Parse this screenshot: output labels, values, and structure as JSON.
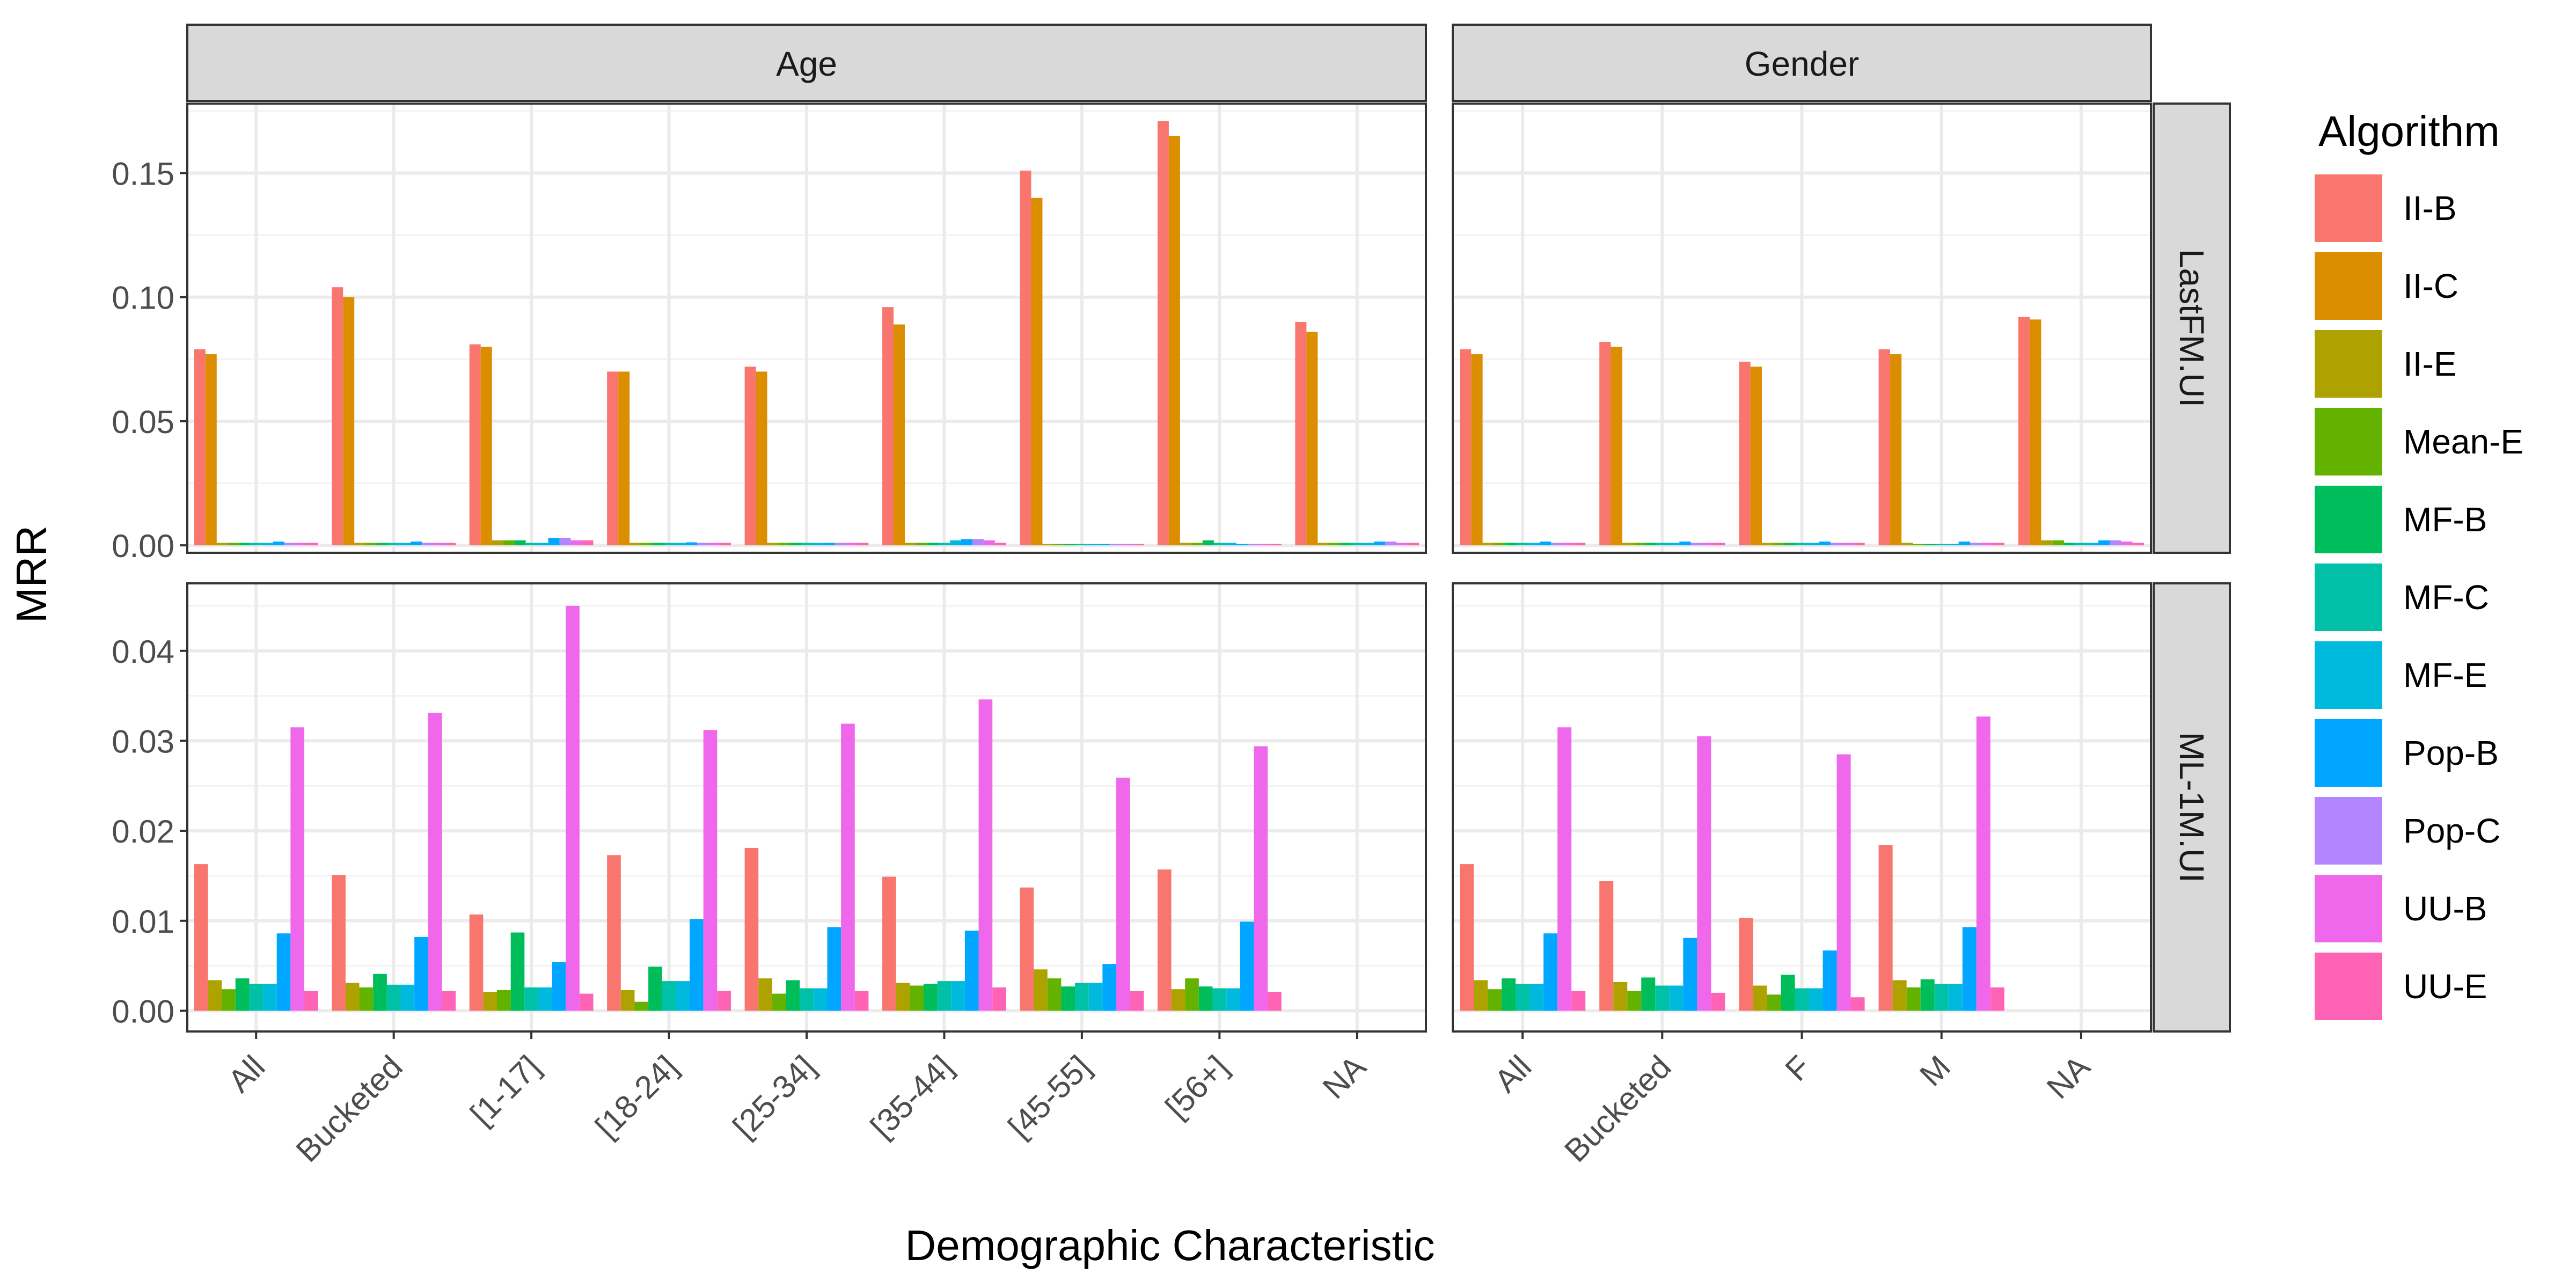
{
  "chart_data": {
    "type": "bar",
    "xlabel": "Demographic Characteristic",
    "ylabel": "MRR",
    "legend": {
      "title": "Algorithm",
      "position": "right",
      "algorithms": [
        "II-B",
        "II-C",
        "II-E",
        "Mean-E",
        "MF-B",
        "MF-C",
        "MF-E",
        "Pop-B",
        "Pop-C",
        "UU-B",
        "UU-E"
      ],
      "colors": [
        "#F8766D",
        "#DB8E00",
        "#AEA200",
        "#64B200",
        "#00BD5C",
        "#00C1A7",
        "#00BADE",
        "#00A6FF",
        "#B385FF",
        "#EF67EB",
        "#FF63B6"
      ]
    },
    "grid": true,
    "columns": [
      {
        "label": "Age",
        "categories": [
          "All",
          "Bucketed",
          "[1-17]",
          "[18-24]",
          "[25-34]",
          "[35-44]",
          "[45-55]",
          "[56+]",
          "NA"
        ]
      },
      {
        "label": "Gender",
        "categories": [
          "All",
          "Bucketed",
          "F",
          "M",
          "NA"
        ]
      }
    ],
    "rows": [
      {
        "label": "LastFM.UI",
        "ylim": [
          -0.003,
          0.178
        ],
        "ticks": [
          0,
          0.05,
          0.1,
          0.15
        ],
        "tick_labels": [
          "0.00",
          "0.05",
          "0.10",
          "0.15"
        ]
      },
      {
        "label": "ML-1M.UI",
        "ylim": [
          -0.0023,
          0.0475
        ],
        "ticks": [
          0,
          0.01,
          0.02,
          0.03,
          0.04
        ],
        "tick_labels": [
          "0.00",
          "0.01",
          "0.02",
          "0.03",
          "0.04"
        ]
      }
    ],
    "panels": [
      {
        "row": 0,
        "col": 0,
        "values": [
          [
            0.079,
            0.077,
            0.001,
            0.001,
            0.001,
            0.001,
            0.001,
            0.0015,
            0.001,
            0.001,
            0.001
          ],
          [
            0.104,
            0.1,
            0.001,
            0.001,
            0.001,
            0.001,
            0.001,
            0.0015,
            0.001,
            0.001,
            0.001
          ],
          [
            0.081,
            0.08,
            0.002,
            0.002,
            0.002,
            0.001,
            0.001,
            0.003,
            0.003,
            0.002,
            0.002
          ],
          [
            0.07,
            0.07,
            0.001,
            0.001,
            0.001,
            0.001,
            0.001,
            0.0012,
            0.001,
            0.001,
            0.001
          ],
          [
            0.072,
            0.07,
            0.001,
            0.001,
            0.001,
            0.001,
            0.001,
            0.001,
            0.001,
            0.001,
            0.001
          ],
          [
            0.096,
            0.089,
            0.001,
            0.001,
            0.001,
            0.001,
            0.002,
            0.0025,
            0.0025,
            0.002,
            0.001
          ],
          [
            0.151,
            0.14,
            0.0005,
            0.0005,
            0.0005,
            0.0005,
            0.0005,
            0.0005,
            0.0005,
            0.0005,
            0.0005
          ],
          [
            0.171,
            0.165,
            0.001,
            0.001,
            0.002,
            0.001,
            0.001,
            0.0005,
            0.0005,
            0.0005,
            0.0005
          ],
          [
            0.09,
            0.086,
            0.001,
            0.001,
            0.001,
            0.001,
            0.001,
            0.0015,
            0.0015,
            0.001,
            0.001
          ]
        ]
      },
      {
        "row": 0,
        "col": 1,
        "values": [
          [
            0.079,
            0.077,
            0.001,
            0.001,
            0.001,
            0.001,
            0.001,
            0.0015,
            0.001,
            0.001,
            0.001
          ],
          [
            0.082,
            0.08,
            0.001,
            0.001,
            0.001,
            0.001,
            0.001,
            0.0015,
            0.001,
            0.001,
            0.001
          ],
          [
            0.074,
            0.072,
            0.001,
            0.001,
            0.001,
            0.001,
            0.001,
            0.0015,
            0.001,
            0.001,
            0.001
          ],
          [
            0.079,
            0.077,
            0.001,
            0.0005,
            0.0005,
            0.0005,
            0.0005,
            0.0015,
            0.001,
            0.001,
            0.001
          ],
          [
            0.092,
            0.091,
            0.002,
            0.002,
            0.001,
            0.001,
            0.001,
            0.002,
            0.002,
            0.0015,
            0.001
          ]
        ]
      },
      {
        "row": 1,
        "col": 0,
        "values": [
          [
            0.0163,
            0.0034,
            0.0024,
            0.0036,
            0.003,
            0.003,
            0.0086,
            0.0315,
            0.0022
          ],
          [
            0.0151,
            0.0031,
            0.0026,
            0.0041,
            0.0029,
            0.0029,
            0.0082,
            0.0331,
            0.0022
          ],
          [
            0.0107,
            0.0021,
            0.0023,
            0.0087,
            0.0026,
            0.0026,
            0.0054,
            0.045,
            0.0019
          ],
          [
            0.0173,
            0.0023,
            0.001,
            0.0049,
            0.0033,
            0.0033,
            0.0102,
            0.0312,
            0.0022
          ],
          [
            0.0181,
            0.0036,
            0.0019,
            0.0034,
            0.0025,
            0.0025,
            0.0093,
            0.0319,
            0.0022
          ],
          [
            0.0149,
            0.0031,
            0.0028,
            0.003,
            0.0033,
            0.0033,
            0.0089,
            0.0346,
            0.0026
          ],
          [
            0.0137,
            0.0046,
            0.0036,
            0.0027,
            0.0031,
            0.0031,
            0.0052,
            0.0259,
            0.0022
          ],
          [
            0.0157,
            0.0024,
            0.0036,
            0.0027,
            0.0025,
            0.0025,
            0.0099,
            0.0294,
            0.0021
          ],
          [
            0,
            0,
            0,
            0,
            0,
            0,
            0,
            0,
            0
          ]
        ],
        "series_index": [
          0,
          2,
          3,
          4,
          5,
          6,
          7,
          9,
          10
        ]
      },
      {
        "row": 1,
        "col": 1,
        "values": [
          [
            0.0163,
            0.0034,
            0.0024,
            0.0036,
            0.003,
            0.003,
            0.0086,
            0.0315,
            0.0022
          ],
          [
            0.0144,
            0.0032,
            0.0022,
            0.0037,
            0.0028,
            0.0028,
            0.0081,
            0.0305,
            0.002
          ],
          [
            0.0103,
            0.0028,
            0.0018,
            0.004,
            0.0025,
            0.0025,
            0.0067,
            0.0285,
            0.0015
          ],
          [
            0.0184,
            0.0034,
            0.0026,
            0.0035,
            0.003,
            0.003,
            0.0093,
            0.0327,
            0.0026
          ],
          [
            0,
            0,
            0,
            0,
            0,
            0,
            0,
            0,
            0
          ]
        ],
        "series_index": [
          0,
          2,
          3,
          4,
          5,
          6,
          7,
          9,
          10
        ]
      }
    ]
  }
}
